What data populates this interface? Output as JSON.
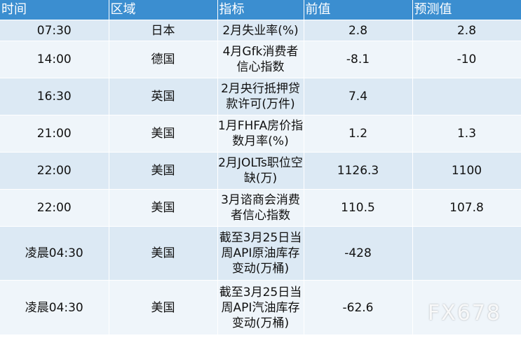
{
  "headers": {
    "time": "时间",
    "region": "区域",
    "indicator": "指标",
    "previous": "前值",
    "forecast": "预测值"
  },
  "rows": [
    {
      "time": "07:30",
      "region": "日本",
      "indicator": "2月失业率(%)",
      "previous": "2.8",
      "forecast": "2.8"
    },
    {
      "time": "14:00",
      "region": "德国",
      "indicator": "4月Gfk消费者信心指数",
      "previous": "-8.1",
      "forecast": "-10"
    },
    {
      "time": "16:30",
      "region": "英国",
      "indicator": "2月央行抵押贷款许可(万件)",
      "previous": "7.4",
      "forecast": ""
    },
    {
      "time": "21:00",
      "region": "美国",
      "indicator": "1月FHFA房价指数月率(%)",
      "previous": "1.2",
      "forecast": "1.3"
    },
    {
      "time": "22:00",
      "region": "美国",
      "indicator": "2月JOLTs职位空缺(万)",
      "previous": "1126.3",
      "forecast": "1100"
    },
    {
      "time": "22:00",
      "region": "美国",
      "indicator": "3月谘商会消费者信心指数",
      "previous": "110.5",
      "forecast": "107.8"
    },
    {
      "time": "凌晨04:30",
      "region": "美国",
      "indicator": "截至3月25日当周API原油库存变动(万桶)",
      "previous": "-428",
      "forecast": ""
    },
    {
      "time": "凌晨04:30",
      "region": "美国",
      "indicator": "截至3月25日当周API汽油库存变动(万桶)",
      "previous": "-62.6",
      "forecast": ""
    }
  ],
  "watermark": "FX678"
}
